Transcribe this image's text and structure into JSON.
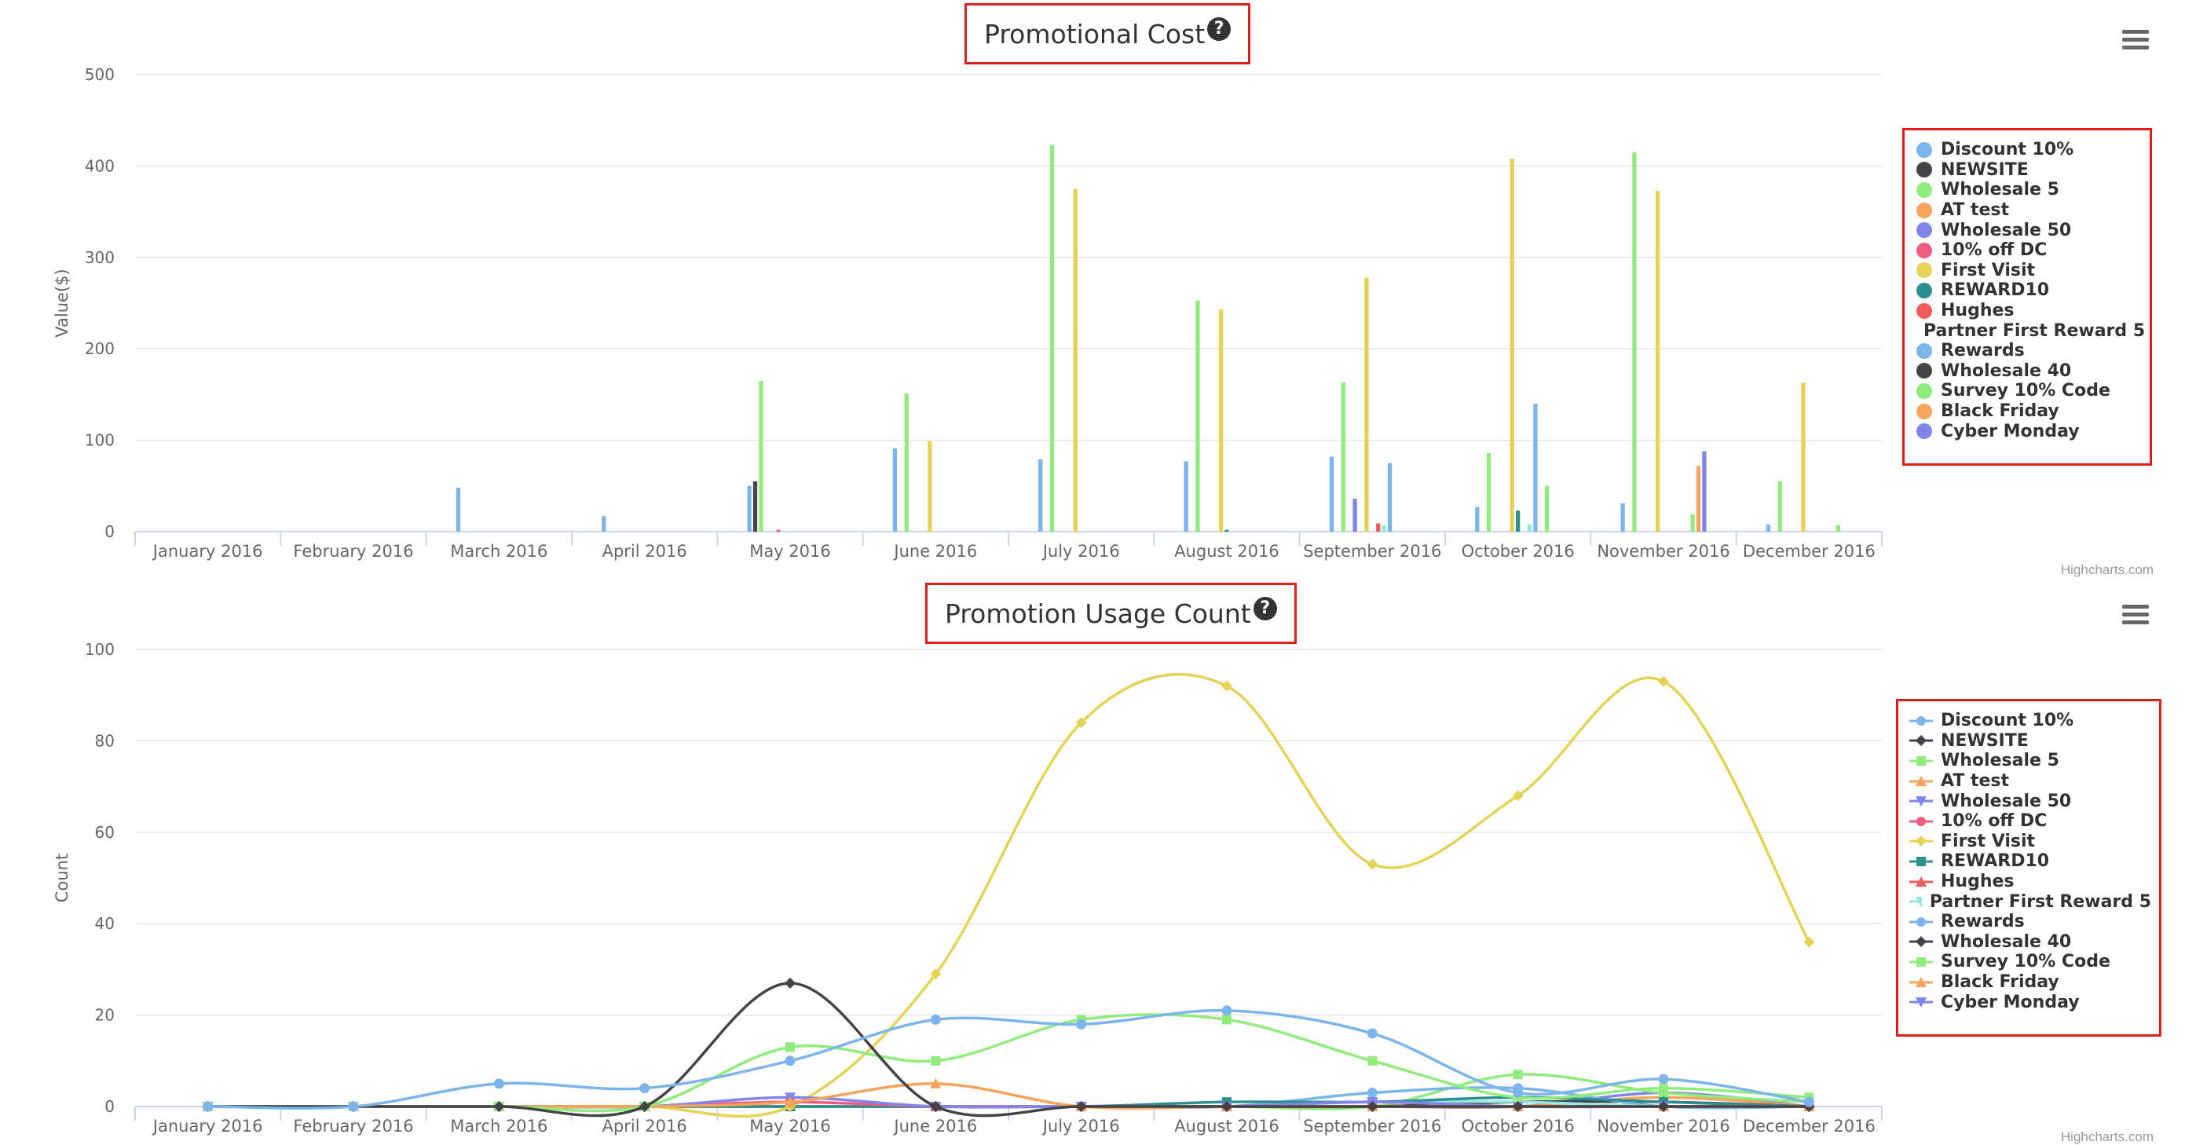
{
  "credits": "Highcharts.com",
  "series_names": [
    "Discount 10%",
    "NEWSITE",
    "Wholesale 5",
    "AT test",
    "Wholesale 50",
    "10% off DC",
    "First Visit",
    "REWARD10",
    "Hughes",
    "Partner First Reward 5",
    "Rewards",
    "Wholesale 40",
    "Survey 10% Code",
    "Black Friday",
    "Cyber Monday"
  ],
  "series_colors": [
    "#7cb5ec",
    "#434348",
    "#90ed7d",
    "#f7a35c",
    "#8085e9",
    "#f15c80",
    "#e4d354",
    "#2b908f",
    "#f45b5b",
    "#91e8e1",
    "#7cb5ec",
    "#434348",
    "#90ed7d",
    "#f7a35c",
    "#8085e9"
  ],
  "chart_data": [
    {
      "type": "bar",
      "title": "Promotional Cost",
      "ylabel": "Value($)",
      "xlabel": "",
      "ylim": [
        0,
        500
      ],
      "yticks": [
        "0",
        "100",
        "200",
        "300",
        "400",
        "500"
      ],
      "grid": true,
      "legend_position": "right",
      "categories": [
        "January 2016",
        "February 2016",
        "March 2016",
        "April 2016",
        "May 2016",
        "June 2016",
        "July 2016",
        "August 2016",
        "September 2016",
        "October 2016",
        "November 2016",
        "December 2016"
      ],
      "series": [
        {
          "name": "Discount 10%",
          "values": [
            0,
            0,
            48,
            17,
            50,
            91,
            79,
            77,
            82,
            27,
            31,
            8
          ]
        },
        {
          "name": "NEWSITE",
          "values": [
            0,
            0,
            0,
            0,
            55,
            0,
            0,
            0,
            0,
            0,
            0,
            0
          ]
        },
        {
          "name": "Wholesale 5",
          "values": [
            0,
            0,
            0,
            0,
            165,
            151,
            423,
            253,
            163,
            86,
            415,
            55
          ]
        },
        {
          "name": "AT test",
          "values": [
            0,
            0,
            0,
            0,
            0,
            0,
            0,
            0,
            0,
            0,
            0,
            0
          ]
        },
        {
          "name": "Wholesale 50",
          "values": [
            0,
            0,
            0,
            0,
            0,
            0,
            0,
            0,
            36,
            0,
            0,
            0
          ]
        },
        {
          "name": "10% off DC",
          "values": [
            0,
            0,
            0,
            0,
            2,
            0,
            0,
            0,
            0,
            0,
            0,
            0
          ]
        },
        {
          "name": "First Visit",
          "values": [
            0,
            0,
            0,
            0,
            0,
            99,
            375,
            243,
            278,
            408,
            373,
            163
          ]
        },
        {
          "name": "REWARD10",
          "values": [
            0,
            0,
            0,
            0,
            0,
            0,
            0,
            2,
            0,
            23,
            0,
            0
          ]
        },
        {
          "name": "Hughes",
          "values": [
            0,
            0,
            0,
            0,
            0,
            0,
            0,
            0,
            9,
            0,
            0,
            0
          ]
        },
        {
          "name": "Partner First Reward 5",
          "values": [
            0,
            0,
            0,
            0,
            0,
            0,
            0,
            0,
            7,
            8,
            0,
            0
          ]
        },
        {
          "name": "Rewards",
          "values": [
            0,
            0,
            0,
            0,
            0,
            0,
            0,
            0,
            75,
            140,
            0,
            0
          ]
        },
        {
          "name": "Wholesale 40",
          "values": [
            0,
            0,
            0,
            0,
            0,
            0,
            0,
            0,
            0,
            0,
            0,
            0
          ]
        },
        {
          "name": "Survey 10% Code",
          "values": [
            0,
            0,
            0,
            0,
            0,
            0,
            0,
            0,
            0,
            50,
            19,
            7
          ]
        },
        {
          "name": "Black Friday",
          "values": [
            0,
            0,
            0,
            0,
            0,
            0,
            0,
            0,
            0,
            0,
            72,
            0
          ]
        },
        {
          "name": "Cyber Monday",
          "values": [
            0,
            0,
            0,
            0,
            0,
            0,
            0,
            0,
            0,
            0,
            88,
            0
          ]
        }
      ]
    },
    {
      "type": "line",
      "title": "Promotion Usage Count",
      "ylabel": "Count",
      "xlabel": "",
      "ylim": [
        0,
        100
      ],
      "yticks": [
        "0",
        "20",
        "40",
        "60",
        "80",
        "100"
      ],
      "grid": true,
      "legend_position": "right",
      "categories": [
        "January 2016",
        "February 2016",
        "March 2016",
        "April 2016",
        "May 2016",
        "June 2016",
        "July 2016",
        "August 2016",
        "September 2016",
        "October 2016",
        "November 2016",
        "December 2016"
      ],
      "series": [
        {
          "name": "Discount 10%",
          "marker": "circle",
          "values": [
            0,
            0,
            5,
            4,
            10,
            19,
            18,
            21,
            16,
            3,
            6,
            1
          ]
        },
        {
          "name": "NEWSITE",
          "marker": "diamond",
          "values": [
            0,
            0,
            0,
            0,
            27,
            0,
            0,
            0,
            0,
            0,
            0,
            0
          ]
        },
        {
          "name": "Wholesale 5",
          "marker": "square",
          "values": [
            0,
            0,
            0,
            0,
            13,
            10,
            19,
            19,
            10,
            2,
            4,
            2
          ]
        },
        {
          "name": "AT test",
          "marker": "triangle",
          "values": [
            0,
            0,
            0,
            0,
            1,
            5,
            0,
            0,
            0,
            0,
            0,
            0
          ]
        },
        {
          "name": "Wholesale 50",
          "marker": "triangle-down",
          "values": [
            0,
            0,
            0,
            0,
            2,
            0,
            0,
            0,
            1,
            0,
            0,
            0
          ]
        },
        {
          "name": "10% off DC",
          "marker": "circle",
          "values": [
            0,
            0,
            0,
            0,
            1,
            0,
            0,
            0,
            0,
            0,
            0,
            0
          ]
        },
        {
          "name": "First Visit",
          "marker": "diamond",
          "values": [
            0,
            0,
            0,
            0,
            0,
            29,
            84,
            92,
            53,
            68,
            93,
            36
          ]
        },
        {
          "name": "REWARD10",
          "marker": "square",
          "values": [
            0,
            0,
            0,
            0,
            0,
            0,
            0,
            1,
            1,
            2,
            1,
            0
          ]
        },
        {
          "name": "Hughes",
          "marker": "triangle",
          "values": [
            0,
            0,
            0,
            0,
            0,
            0,
            0,
            0,
            1,
            0,
            0,
            0
          ]
        },
        {
          "name": "Partner First Reward 5",
          "marker": "triangle-down",
          "values": [
            0,
            0,
            0,
            0,
            0,
            0,
            0,
            0,
            1,
            1,
            0,
            0
          ]
        },
        {
          "name": "Rewards",
          "marker": "circle",
          "values": [
            0,
            0,
            0,
            0,
            0,
            0,
            0,
            0,
            3,
            4,
            0,
            0
          ]
        },
        {
          "name": "Wholesale 40",
          "marker": "diamond",
          "values": [
            0,
            0,
            0,
            0,
            0,
            0,
            0,
            0,
            0,
            1,
            1,
            0
          ]
        },
        {
          "name": "Survey 10% Code",
          "marker": "square",
          "values": [
            0,
            0,
            0,
            0,
            0,
            0,
            0,
            0,
            0,
            7,
            3,
            1
          ]
        },
        {
          "name": "Black Friday",
          "marker": "triangle",
          "values": [
            0,
            0,
            0,
            0,
            0,
            0,
            0,
            0,
            0,
            0,
            2,
            0
          ]
        },
        {
          "name": "Cyber Monday",
          "marker": "triangle-down",
          "values": [
            0,
            0,
            0,
            0,
            0,
            0,
            0,
            0,
            0,
            0,
            3,
            0
          ]
        }
      ]
    }
  ]
}
